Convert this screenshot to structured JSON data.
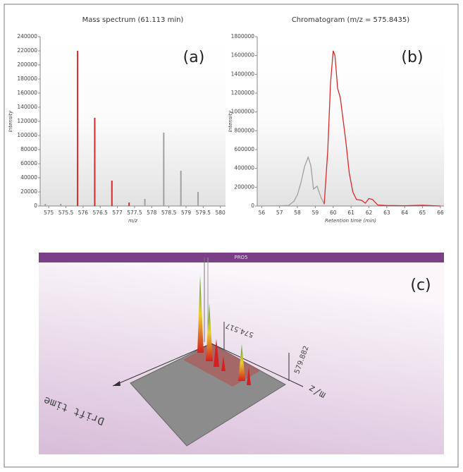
{
  "chart_data": [
    {
      "type": "stem",
      "title": "Mass spectrum (61.113 min)",
      "label": "(a)",
      "x_label": "m/z",
      "y_label": "Intensity",
      "xlim": [
        574.75,
        580.15
      ],
      "xticks": [
        575,
        575.5,
        576,
        576.5,
        577,
        577.5,
        578,
        578.5,
        579,
        579.5,
        580
      ],
      "ylim": [
        0,
        240000
      ],
      "yticks": [
        0,
        20000,
        40000,
        60000,
        80000,
        100000,
        120000,
        140000,
        160000,
        180000,
        200000,
        220000,
        240000
      ],
      "series": [
        {
          "color": "#d42a2a",
          "x": [
            575.84,
            576.34,
            576.84,
            577.34
          ],
          "values": [
            220000,
            125000,
            36000,
            5000
          ]
        },
        {
          "color": "#a0a0a0",
          "x": [
            574.9,
            575.35,
            577.8,
            578.35,
            578.85,
            579.35
          ],
          "values": [
            3000,
            3000,
            10000,
            104000,
            50000,
            20000
          ]
        }
      ]
    },
    {
      "type": "line",
      "title": "Chromatogram (m/z = 575.8435)",
      "label": "(b)",
      "x_label": "Retention time (min)",
      "y_label": "Intensity",
      "xlim": [
        55.75,
        66.2
      ],
      "xticks": [
        56,
        57,
        58,
        59,
        60,
        61,
        62,
        63,
        64,
        65,
        66
      ],
      "ylim": [
        0,
        1800000
      ],
      "yticks": [
        0,
        200000,
        400000,
        600000,
        800000,
        1000000,
        1200000,
        1400000,
        1600000,
        1800000
      ],
      "series": [
        {
          "color": "#a0a0a0",
          "x": [
            56,
            57,
            57.5,
            57.8,
            58,
            58.2,
            58.4,
            58.6,
            58.75,
            58.9,
            59.1,
            59.3,
            59.5
          ],
          "values": [
            0,
            2000,
            5000,
            50000,
            120000,
            250000,
            420000,
            520000,
            430000,
            180000,
            210000,
            100000,
            20000
          ]
        },
        {
          "color": "#d42a2a",
          "x": [
            59.5,
            59.7,
            59.85,
            60,
            60.1,
            60.25,
            60.4,
            60.5,
            60.7,
            60.9,
            61.1,
            61.3,
            61.6,
            61.8,
            62,
            62.2,
            62.5,
            63,
            64,
            65,
            66
          ],
          "values": [
            20000,
            600000,
            1300000,
            1650000,
            1600000,
            1250000,
            1150000,
            1000000,
            700000,
            350000,
            150000,
            70000,
            60000,
            30000,
            80000,
            70000,
            10000,
            5000,
            3000,
            8000,
            0
          ]
        }
      ]
    }
  ],
  "panel_c": {
    "label": "(c)",
    "header": "PRO5",
    "mz_low": "574.517",
    "mz_high": "579.882",
    "mz_axis": "m/z",
    "drift_axis": "Drift time"
  }
}
